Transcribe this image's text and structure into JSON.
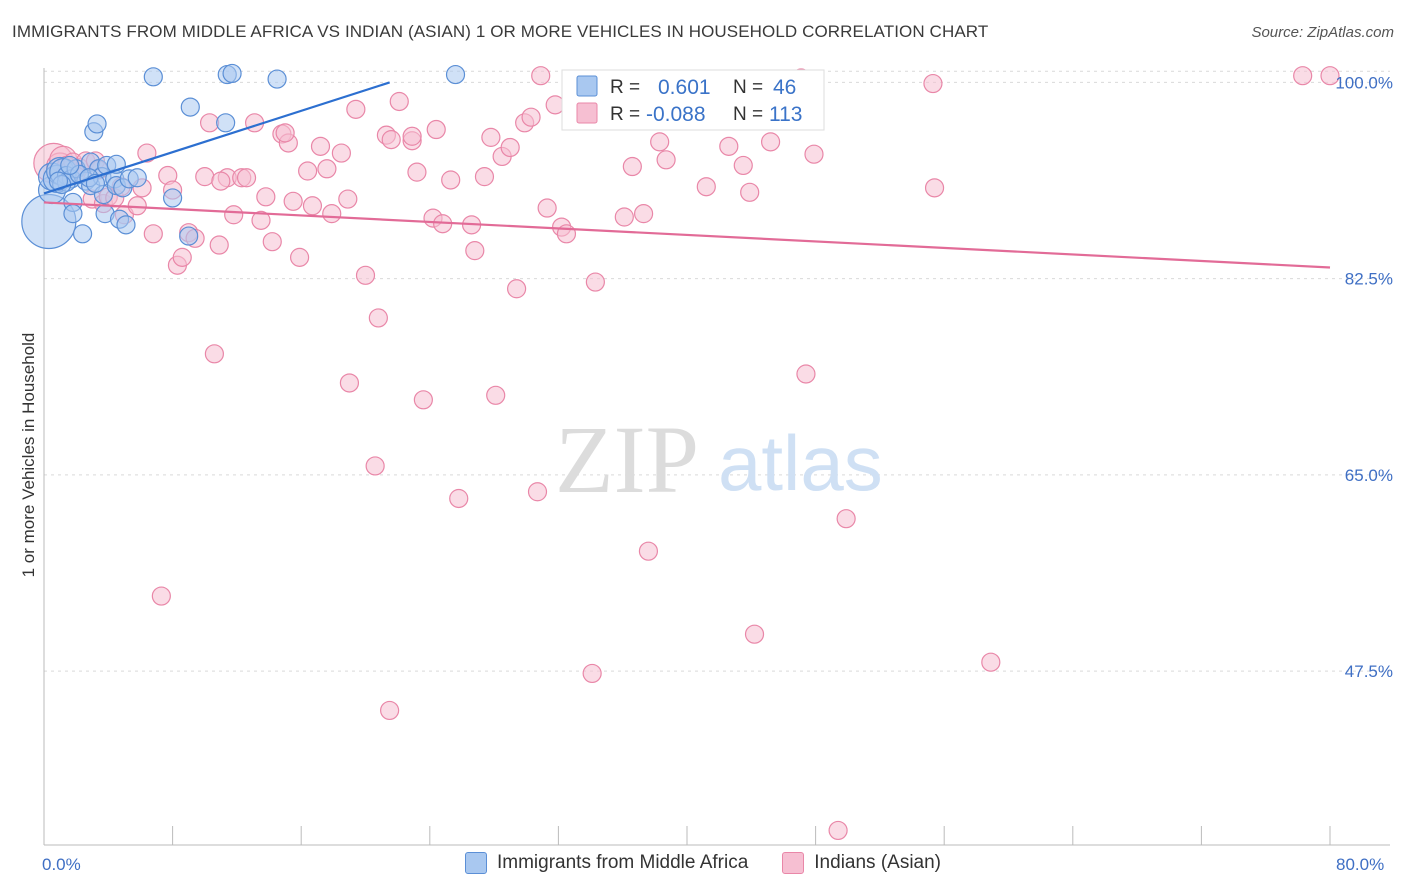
{
  "title": "IMMIGRANTS FROM MIDDLE AFRICA VS INDIAN (ASIAN) 1 OR MORE VEHICLES IN HOUSEHOLD CORRELATION CHART",
  "source": "Source: ZipAtlas.com",
  "watermark": {
    "zip": "ZIP",
    "atlas": "atlas"
  },
  "legend": {
    "r_label": "R =",
    "n_label": "N =",
    "series1_r": "0.601",
    "series1_n": "46",
    "series2_r": "-0.088",
    "series2_n": "113"
  },
  "bottom_legend": {
    "series1": "Immigrants from Middle Africa",
    "series2": "Indians (Asian)"
  },
  "colors": {
    "blue_fill": "#a9c8f0",
    "blue_stroke": "#5b8fd6",
    "blue_line": "#2c6fd0",
    "pink_fill": "#f6bfd2",
    "pink_stroke": "#e987a8",
    "pink_line": "#e26b97",
    "tick_text": "#3f6fc4",
    "grid": "#d9d9d9"
  },
  "chart_data": {
    "type": "scatter",
    "title": "IMMIGRANTS FROM MIDDLE AFRICA VS INDIAN (ASIAN) 1 OR MORE VEHICLES IN HOUSEHOLD CORRELATION CHART",
    "xlabel": "",
    "ylabel": "1 or more Vehicles in Household",
    "xlim": [
      0,
      80
    ],
    "ylim": [
      32,
      102
    ],
    "x_tick_labels": [
      "0.0%",
      "80.0%"
    ],
    "y_ticks": [
      100,
      82.5,
      65,
      47.5
    ],
    "y_tick_labels": [
      "100.0%",
      "82.5%",
      "65.0%",
      "47.5%"
    ],
    "grid": true,
    "series": [
      {
        "name": "Immigrants from Middle Africa",
        "r": 0.601,
        "n": 46,
        "trendline": {
          "x": [
            0,
            21.5
          ],
          "y": [
            90.1,
            100.0
          ]
        },
        "points": [
          {
            "x": 0.3,
            "y": 87.6,
            "s": 3
          },
          {
            "x": 0.5,
            "y": 90.4,
            "s": 1.5
          },
          {
            "x": 0.5,
            "y": 91.6,
            "s": 1.5
          },
          {
            "x": 0.8,
            "y": 91.4,
            "s": 1.5
          },
          {
            "x": 1.0,
            "y": 92.1,
            "s": 1.5
          },
          {
            "x": 1.2,
            "y": 92.0,
            "s": 1.5
          },
          {
            "x": 1.4,
            "y": 91.7,
            "s": 1
          },
          {
            "x": 1.7,
            "y": 91.4,
            "s": 1
          },
          {
            "x": 1.8,
            "y": 89.3,
            "s": 1
          },
          {
            "x": 1.8,
            "y": 88.3,
            "s": 1
          },
          {
            "x": 2.0,
            "y": 92.3,
            "s": 1
          },
          {
            "x": 2.4,
            "y": 86.5,
            "s": 1
          },
          {
            "x": 2.6,
            "y": 91.2,
            "s": 1
          },
          {
            "x": 2.9,
            "y": 92.9,
            "s": 1
          },
          {
            "x": 2.9,
            "y": 90.8,
            "s": 1
          },
          {
            "x": 3.1,
            "y": 95.6,
            "s": 1
          },
          {
            "x": 3.3,
            "y": 96.3,
            "s": 1
          },
          {
            "x": 3.4,
            "y": 92.3,
            "s": 1
          },
          {
            "x": 3.6,
            "y": 91.6,
            "s": 1
          },
          {
            "x": 3.7,
            "y": 90.0,
            "s": 1
          },
          {
            "x": 3.8,
            "y": 88.3,
            "s": 1
          },
          {
            "x": 3.9,
            "y": 92.6,
            "s": 1
          },
          {
            "x": 4.4,
            "y": 91.4,
            "s": 1
          },
          {
            "x": 4.5,
            "y": 92.7,
            "s": 1
          },
          {
            "x": 4.5,
            "y": 90.8,
            "s": 1
          },
          {
            "x": 4.7,
            "y": 87.8,
            "s": 1
          },
          {
            "x": 4.9,
            "y": 90.6,
            "s": 1
          },
          {
            "x": 5.1,
            "y": 87.3,
            "s": 1
          },
          {
            "x": 5.3,
            "y": 91.4,
            "s": 1
          },
          {
            "x": 5.8,
            "y": 91.5,
            "s": 1
          },
          {
            "x": 6.8,
            "y": 100.5,
            "s": 1
          },
          {
            "x": 8.0,
            "y": 89.7,
            "s": 1
          },
          {
            "x": 9.0,
            "y": 86.3,
            "s": 1
          },
          {
            "x": 9.1,
            "y": 97.8,
            "s": 1
          },
          {
            "x": 11.3,
            "y": 96.4,
            "s": 1
          },
          {
            "x": 11.4,
            "y": 100.7,
            "s": 1
          },
          {
            "x": 11.7,
            "y": 100.8,
            "s": 1
          },
          {
            "x": 14.5,
            "y": 100.3,
            "s": 1
          },
          {
            "x": 25.6,
            "y": 100.7,
            "s": 1
          },
          {
            "x": 1.4,
            "y": 91.1,
            "s": 1
          },
          {
            "x": 2.2,
            "y": 91.8,
            "s": 1
          },
          {
            "x": 1.1,
            "y": 90.9,
            "s": 1
          },
          {
            "x": 0.9,
            "y": 91.2,
            "s": 1
          },
          {
            "x": 2.8,
            "y": 91.5,
            "s": 1
          },
          {
            "x": 3.2,
            "y": 91.0,
            "s": 1
          },
          {
            "x": 1.6,
            "y": 92.6,
            "s": 1
          }
        ]
      },
      {
        "name": "Indians (Asian)",
        "r": -0.088,
        "n": 113,
        "trendline": {
          "x": [
            0,
            80
          ],
          "y": [
            89.3,
            83.5
          ]
        },
        "points": [
          {
            "x": 0.6,
            "y": 92.8,
            "s": 2.2
          },
          {
            "x": 1.0,
            "y": 92.5,
            "s": 1.5
          },
          {
            "x": 1.2,
            "y": 93.1,
            "s": 1.5
          },
          {
            "x": 1.4,
            "y": 92.6,
            "s": 1
          },
          {
            "x": 1.6,
            "y": 92.2,
            "s": 1
          },
          {
            "x": 1.8,
            "y": 92.9,
            "s": 1
          },
          {
            "x": 2.0,
            "y": 91.9,
            "s": 1
          },
          {
            "x": 2.2,
            "y": 92.4,
            "s": 1
          },
          {
            "x": 2.6,
            "y": 93.0,
            "s": 1
          },
          {
            "x": 3.0,
            "y": 89.6,
            "s": 1
          },
          {
            "x": 3.2,
            "y": 93.0,
            "s": 1
          },
          {
            "x": 3.4,
            "y": 92.2,
            "s": 1
          },
          {
            "x": 3.7,
            "y": 89.2,
            "s": 1
          },
          {
            "x": 4.0,
            "y": 89.8,
            "s": 1
          },
          {
            "x": 4.4,
            "y": 89.7,
            "s": 1
          },
          {
            "x": 4.8,
            "y": 90.7,
            "s": 1
          },
          {
            "x": 5.0,
            "y": 88.2,
            "s": 1
          },
          {
            "x": 5.8,
            "y": 89.0,
            "s": 1
          },
          {
            "x": 6.1,
            "y": 90.6,
            "s": 1
          },
          {
            "x": 6.4,
            "y": 93.7,
            "s": 1
          },
          {
            "x": 6.8,
            "y": 86.5,
            "s": 1
          },
          {
            "x": 7.7,
            "y": 91.7,
            "s": 1
          },
          {
            "x": 8.0,
            "y": 90.4,
            "s": 1
          },
          {
            "x": 8.3,
            "y": 83.7,
            "s": 1
          },
          {
            "x": 8.6,
            "y": 84.4,
            "s": 1
          },
          {
            "x": 9.0,
            "y": 86.6,
            "s": 1
          },
          {
            "x": 9.4,
            "y": 86.1,
            "s": 1
          },
          {
            "x": 10.0,
            "y": 91.6,
            "s": 1
          },
          {
            "x": 10.3,
            "y": 96.4,
            "s": 1
          },
          {
            "x": 10.6,
            "y": 75.8,
            "s": 1
          },
          {
            "x": 10.9,
            "y": 85.5,
            "s": 1
          },
          {
            "x": 11.4,
            "y": 91.5,
            "s": 1
          },
          {
            "x": 11.8,
            "y": 88.2,
            "s": 1
          },
          {
            "x": 12.3,
            "y": 91.5,
            "s": 1
          },
          {
            "x": 12.6,
            "y": 91.5,
            "s": 1
          },
          {
            "x": 13.1,
            "y": 96.4,
            "s": 1
          },
          {
            "x": 13.5,
            "y": 87.7,
            "s": 1
          },
          {
            "x": 13.8,
            "y": 89.8,
            "s": 1
          },
          {
            "x": 14.2,
            "y": 85.8,
            "s": 1
          },
          {
            "x": 14.8,
            "y": 95.4,
            "s": 1
          },
          {
            "x": 15.2,
            "y": 94.6,
            "s": 1
          },
          {
            "x": 15.5,
            "y": 89.4,
            "s": 1
          },
          {
            "x": 15.9,
            "y": 84.4,
            "s": 1
          },
          {
            "x": 16.4,
            "y": 92.1,
            "s": 1
          },
          {
            "x": 16.7,
            "y": 89.0,
            "s": 1
          },
          {
            "x": 17.2,
            "y": 94.3,
            "s": 1
          },
          {
            "x": 17.6,
            "y": 92.3,
            "s": 1
          },
          {
            "x": 17.9,
            "y": 88.3,
            "s": 1
          },
          {
            "x": 18.5,
            "y": 93.7,
            "s": 1
          },
          {
            "x": 18.9,
            "y": 89.6,
            "s": 1
          },
          {
            "x": 19.0,
            "y": 73.2,
            "s": 1
          },
          {
            "x": 19.4,
            "y": 97.6,
            "s": 1
          },
          {
            "x": 20.0,
            "y": 82.8,
            "s": 1
          },
          {
            "x": 20.6,
            "y": 65.8,
            "s": 1
          },
          {
            "x": 20.8,
            "y": 79.0,
            "s": 1
          },
          {
            "x": 21.3,
            "y": 95.3,
            "s": 1
          },
          {
            "x": 21.6,
            "y": 94.9,
            "s": 1
          },
          {
            "x": 22.1,
            "y": 98.3,
            "s": 1
          },
          {
            "x": 22.9,
            "y": 94.8,
            "s": 1
          },
          {
            "x": 23.2,
            "y": 92.0,
            "s": 1
          },
          {
            "x": 23.6,
            "y": 71.7,
            "s": 1
          },
          {
            "x": 24.2,
            "y": 87.9,
            "s": 1
          },
          {
            "x": 24.4,
            "y": 95.8,
            "s": 1
          },
          {
            "x": 24.8,
            "y": 87.4,
            "s": 1
          },
          {
            "x": 25.3,
            "y": 91.3,
            "s": 1
          },
          {
            "x": 25.8,
            "y": 62.9,
            "s": 1
          },
          {
            "x": 26.6,
            "y": 87.3,
            "s": 1
          },
          {
            "x": 26.8,
            "y": 85.0,
            "s": 1
          },
          {
            "x": 27.4,
            "y": 91.6,
            "s": 1
          },
          {
            "x": 27.8,
            "y": 95.1,
            "s": 1
          },
          {
            "x": 28.1,
            "y": 72.1,
            "s": 1
          },
          {
            "x": 28.5,
            "y": 93.4,
            "s": 1
          },
          {
            "x": 29.0,
            "y": 94.2,
            "s": 1
          },
          {
            "x": 29.4,
            "y": 81.6,
            "s": 1
          },
          {
            "x": 29.9,
            "y": 96.4,
            "s": 1
          },
          {
            "x": 30.3,
            "y": 96.9,
            "s": 1
          },
          {
            "x": 30.7,
            "y": 63.5,
            "s": 1
          },
          {
            "x": 30.9,
            "y": 100.6,
            "s": 1
          },
          {
            "x": 31.3,
            "y": 88.8,
            "s": 1
          },
          {
            "x": 31.8,
            "y": 98.0,
            "s": 1
          },
          {
            "x": 32.2,
            "y": 87.1,
            "s": 1
          },
          {
            "x": 32.5,
            "y": 86.5,
            "s": 1
          },
          {
            "x": 34.1,
            "y": 47.3,
            "s": 1
          },
          {
            "x": 34.3,
            "y": 82.2,
            "s": 1
          },
          {
            "x": 35.2,
            "y": 97.9,
            "s": 1
          },
          {
            "x": 36.1,
            "y": 88.0,
            "s": 1
          },
          {
            "x": 36.6,
            "y": 92.5,
            "s": 1
          },
          {
            "x": 37.3,
            "y": 88.3,
            "s": 1
          },
          {
            "x": 37.6,
            "y": 58.2,
            "s": 1
          },
          {
            "x": 38.3,
            "y": 94.7,
            "s": 1
          },
          {
            "x": 38.7,
            "y": 93.1,
            "s": 1
          },
          {
            "x": 41.2,
            "y": 90.7,
            "s": 1
          },
          {
            "x": 42.6,
            "y": 94.3,
            "s": 1
          },
          {
            "x": 43.5,
            "y": 92.6,
            "s": 1
          },
          {
            "x": 43.9,
            "y": 90.2,
            "s": 1
          },
          {
            "x": 44.2,
            "y": 50.8,
            "s": 1
          },
          {
            "x": 45.2,
            "y": 94.7,
            "s": 1
          },
          {
            "x": 47.1,
            "y": 100.4,
            "s": 1
          },
          {
            "x": 47.2,
            "y": 100.3,
            "s": 1
          },
          {
            "x": 47.4,
            "y": 74.0,
            "s": 1
          },
          {
            "x": 47.9,
            "y": 93.6,
            "s": 1
          },
          {
            "x": 49.4,
            "y": 33.3,
            "s": 1
          },
          {
            "x": 49.9,
            "y": 61.1,
            "s": 1
          },
          {
            "x": 55.4,
            "y": 90.6,
            "s": 1
          },
          {
            "x": 55.3,
            "y": 99.9,
            "s": 1
          },
          {
            "x": 58.9,
            "y": 48.3,
            "s": 1
          },
          {
            "x": 7.3,
            "y": 54.2,
            "s": 1
          },
          {
            "x": 21.5,
            "y": 44.0,
            "s": 1
          },
          {
            "x": 78.3,
            "y": 100.6,
            "s": 1
          },
          {
            "x": 80.0,
            "y": 100.6,
            "s": 1
          },
          {
            "x": 22.9,
            "y": 95.2,
            "s": 1
          },
          {
            "x": 11.0,
            "y": 91.2,
            "s": 1
          },
          {
            "x": 15.0,
            "y": 95.5,
            "s": 1
          }
        ]
      }
    ]
  }
}
